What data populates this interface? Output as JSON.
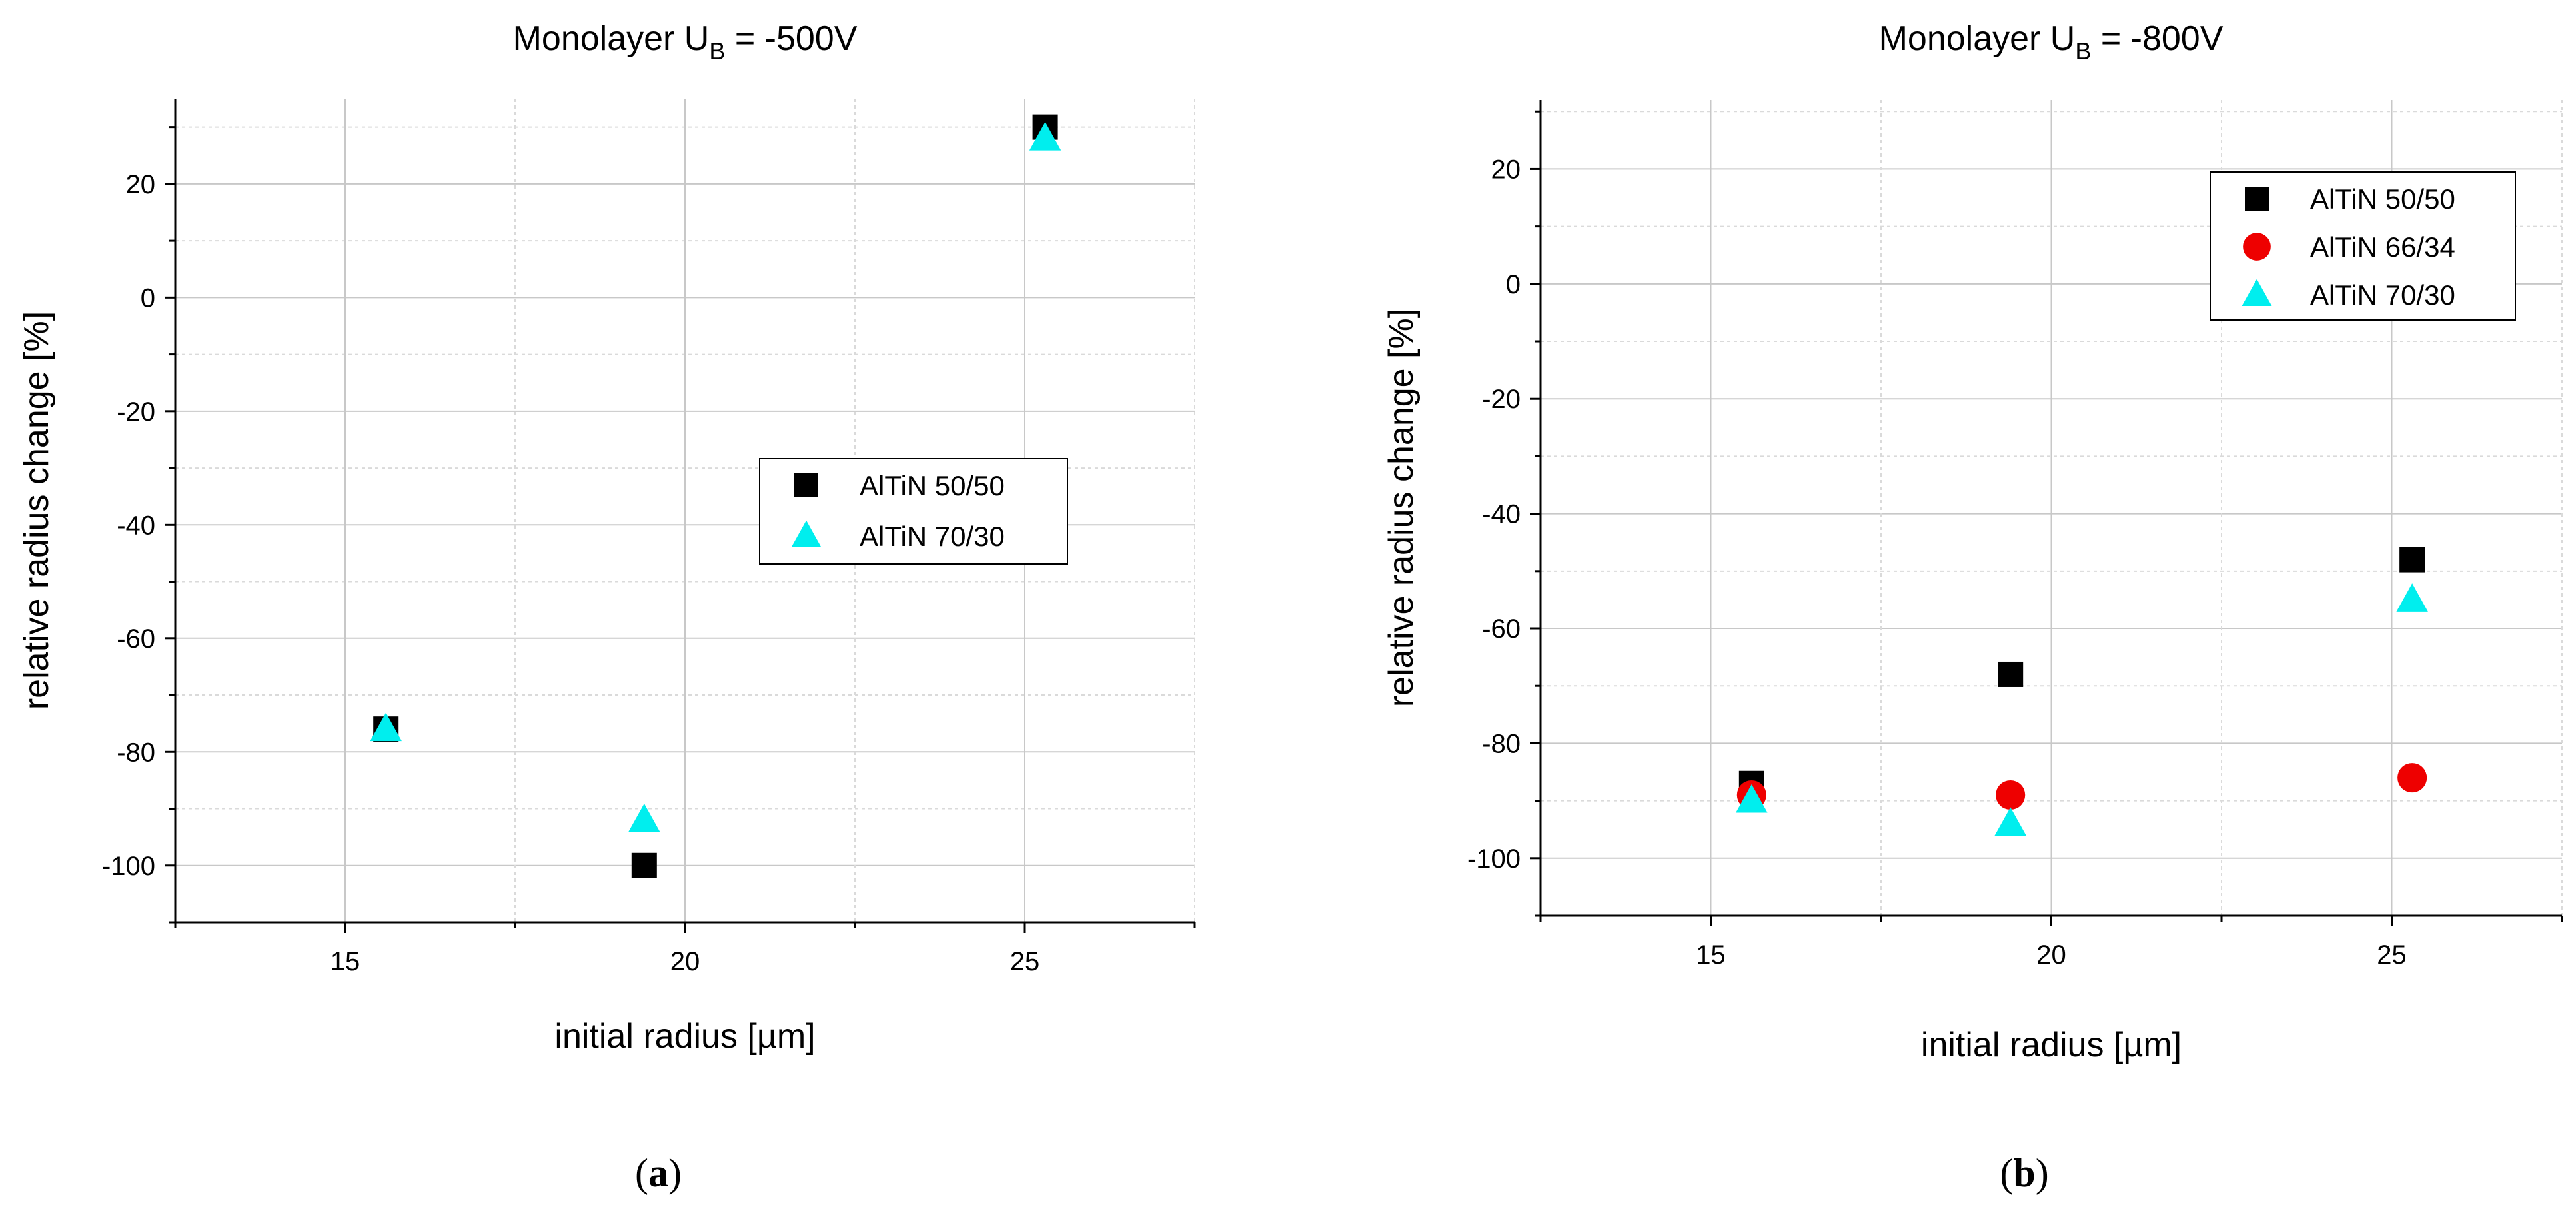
{
  "chart_data": [
    {
      "type": "scatter",
      "title_prefix": "Monolayer U",
      "title_subscript": "B",
      "title_suffix": " = -500V",
      "xlabel": "initial radius [µm]",
      "ylabel": "relative radius change [%]",
      "xlim": [
        12.5,
        27.5
      ],
      "ylim": [
        -110,
        35
      ],
      "xticks": [
        15,
        20,
        25
      ],
      "yticks": [
        -100,
        -80,
        -60,
        -40,
        -20,
        0,
        20
      ],
      "grid": true,
      "legend_position": "center-right",
      "caption_open": "(",
      "caption_letter": "a",
      "caption_close": ")",
      "series": [
        {
          "name": "AlTiN 50/50",
          "marker": "square",
          "color": "#000000",
          "x": [
            15.6,
            19.4,
            25.3
          ],
          "y": [
            -76,
            -100,
            30
          ]
        },
        {
          "name": "AlTiN 70/30",
          "marker": "triangle",
          "color": "#00eeee",
          "x": [
            15.6,
            19.4,
            25.3
          ],
          "y": [
            -76,
            -92,
            28
          ]
        }
      ]
    },
    {
      "type": "scatter",
      "title_prefix": "Monolayer U",
      "title_subscript": "B",
      "title_suffix": " = -800V",
      "xlabel": "initial radius [µm]",
      "ylabel": "relative radius change [%]",
      "xlim": [
        12.5,
        27.5
      ],
      "ylim": [
        -110,
        32
      ],
      "xticks": [
        15,
        20,
        25
      ],
      "yticks": [
        -100,
        -80,
        -60,
        -40,
        -20,
        0,
        20
      ],
      "grid": true,
      "legend_position": "top-right",
      "caption_open": "(",
      "caption_letter": "b",
      "caption_close": ")",
      "series": [
        {
          "name": "AlTiN 50/50",
          "marker": "square",
          "color": "#000000",
          "x": [
            15.6,
            19.4,
            25.3
          ],
          "y": [
            -87,
            -68,
            -48
          ]
        },
        {
          "name": "AlTiN 66/34",
          "marker": "circle",
          "color": "#ee0000",
          "x": [
            15.6,
            19.4,
            25.3
          ],
          "y": [
            -89,
            -89,
            -86
          ]
        },
        {
          "name": "AlTiN 70/30",
          "marker": "triangle",
          "color": "#00eeee",
          "x": [
            15.6,
            19.4,
            25.3
          ],
          "y": [
            -90,
            -94,
            -55
          ]
        }
      ]
    }
  ]
}
